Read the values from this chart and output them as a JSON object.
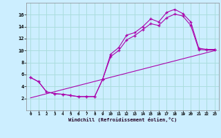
{
  "xlabel": "Windchill (Refroidissement éolien,°C)",
  "bg_color": "#cceeff",
  "grid_color": "#aadddd",
  "line_color": "#aa00aa",
  "xlim": [
    -0.5,
    23.5
  ],
  "ylim": [
    0,
    18
  ],
  "xticks": [
    0,
    1,
    2,
    3,
    4,
    5,
    6,
    7,
    8,
    9,
    10,
    11,
    12,
    13,
    14,
    15,
    16,
    17,
    18,
    19,
    20,
    21,
    22,
    23
  ],
  "yticks": [
    2,
    4,
    6,
    8,
    10,
    12,
    14,
    16
  ],
  "line1_x": [
    0,
    1,
    2,
    3,
    4,
    5,
    6,
    7,
    8,
    9,
    10,
    11,
    12,
    13,
    14,
    15,
    16,
    17,
    18,
    19,
    20,
    21,
    22,
    23
  ],
  "line1_y": [
    5.5,
    4.8,
    3.1,
    2.8,
    2.7,
    2.5,
    2.3,
    2.3,
    2.3,
    5.2,
    9.4,
    10.5,
    12.6,
    13.0,
    14.0,
    15.3,
    14.8,
    16.4,
    16.9,
    16.2,
    14.8,
    10.4,
    10.2,
    10.2
  ],
  "line2_x": [
    0,
    1,
    2,
    3,
    4,
    5,
    6,
    7,
    8,
    9,
    10,
    11,
    12,
    13,
    14,
    15,
    16,
    17,
    18,
    19,
    20,
    21,
    22,
    23
  ],
  "line2_y": [
    5.5,
    4.8,
    3.1,
    2.8,
    2.7,
    2.5,
    2.3,
    2.3,
    2.3,
    5.2,
    9.0,
    10.0,
    11.8,
    12.5,
    13.5,
    14.5,
    14.2,
    15.5,
    16.1,
    15.8,
    14.2,
    10.2,
    10.1,
    10.1
  ],
  "line3_x": [
    0,
    23
  ],
  "line3_y": [
    2.1,
    10.0
  ]
}
